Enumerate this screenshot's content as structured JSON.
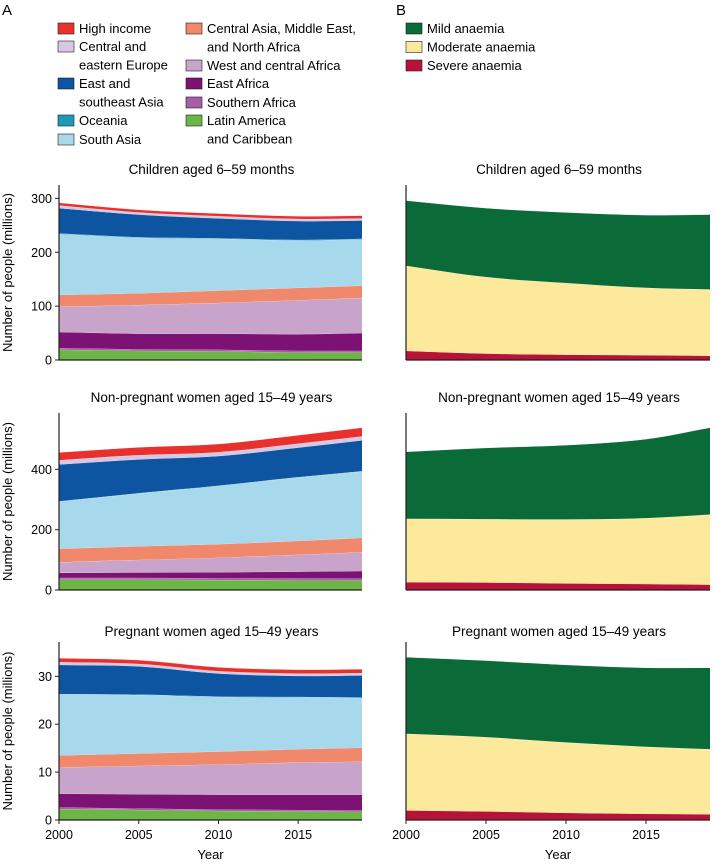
{
  "figure": {
    "panel_a_label": "A",
    "panel_b_label": "B"
  },
  "legend_a": [
    {
      "lines": [
        "High income"
      ],
      "color": "#e8312d"
    },
    {
      "lines": [
        "Central and",
        "eastern Europe"
      ],
      "color": "#d8c7e3"
    },
    {
      "lines": [
        "East and",
        "southeast Asia"
      ],
      "color": "#0d55a1"
    },
    {
      "lines": [
        "Oceania"
      ],
      "color": "#1d9bb6"
    },
    {
      "lines": [
        "South Asia"
      ],
      "color": "#a7d8ec"
    },
    {
      "lines": [
        "Central Asia, Middle East,",
        "and North Africa"
      ],
      "color": "#f0886b"
    },
    {
      "lines": [
        "West and central Africa"
      ],
      "color": "#c8a4cb"
    },
    {
      "lines": [
        "East Africa"
      ],
      "color": "#7c1374"
    },
    {
      "lines": [
        "Southern Africa"
      ],
      "color": "#a65ea6"
    },
    {
      "lines": [
        "Latin America",
        "and Caribbean"
      ],
      "color": "#6cb645"
    }
  ],
  "legend_b": [
    {
      "lines": [
        "Mild anaemia"
      ],
      "color": "#0a6b39"
    },
    {
      "lines": [
        "Moderate anaemia"
      ],
      "color": "#fde99c"
    },
    {
      "lines": [
        "Severe anaemia"
      ],
      "color": "#b81238"
    }
  ],
  "chart_data": [
    {
      "type": "area",
      "panel": "A",
      "title": "Children aged 6–59 months",
      "xlabel": "",
      "ylabel": "Number of people (millions)",
      "xlim": [
        2000,
        2019
      ],
      "ylim": [
        0,
        310
      ],
      "yticks": [
        0,
        100,
        200,
        300
      ],
      "xticks": [],
      "x": [
        2000,
        2005,
        2010,
        2015,
        2019
      ],
      "series": [
        {
          "name": "Latin America and Caribbean",
          "values": [
            19,
            17,
            16,
            14,
            14
          ]
        },
        {
          "name": "Southern Africa",
          "values": [
            3,
            3,
            3,
            3,
            3
          ]
        },
        {
          "name": "East Africa",
          "values": [
            30,
            29,
            30,
            31,
            33
          ]
        },
        {
          "name": "West and central Africa",
          "values": [
            47,
            53,
            57,
            63,
            65
          ]
        },
        {
          "name": "Central Asia, Middle East, and North Africa",
          "values": [
            22,
            22,
            23,
            23,
            23
          ]
        },
        {
          "name": "South Asia",
          "values": [
            113,
            103,
            96,
            88,
            86
          ]
        },
        {
          "name": "Oceania",
          "values": [
            1,
            1,
            1,
            1,
            1
          ]
        },
        {
          "name": "East and southeast Asia",
          "values": [
            47,
            42,
            37,
            35,
            34
          ]
        },
        {
          "name": "Central and eastern Europe",
          "values": [
            5,
            4,
            4,
            4,
            4
          ]
        },
        {
          "name": "High income",
          "values": [
            5,
            5,
            5,
            5,
            5
          ]
        }
      ]
    },
    {
      "type": "area",
      "panel": "B",
      "title": "Children aged 6–59 months",
      "xlabel": "",
      "ylabel": "",
      "xlim": [
        2000,
        2019
      ],
      "ylim": [
        0,
        310
      ],
      "yticks": [],
      "xticks": [],
      "x": [
        2000,
        2005,
        2010,
        2015,
        2019
      ],
      "series": [
        {
          "name": "Severe anaemia",
          "values": [
            17,
            12,
            10,
            9,
            8
          ]
        },
        {
          "name": "Moderate anaemia",
          "values": [
            158,
            142,
            133,
            125,
            123
          ]
        },
        {
          "name": "Mild anaemia",
          "values": [
            121,
            128,
            131,
            135,
            139
          ]
        }
      ]
    },
    {
      "type": "area",
      "panel": "A",
      "title": "Non-pregnant women aged 15–49 years",
      "xlabel": "",
      "ylabel": "Number of people (millions)",
      "xlim": [
        2000,
        2019
      ],
      "ylim": [
        0,
        560
      ],
      "yticks": [
        0,
        200,
        400
      ],
      "xticks": [],
      "x": [
        2000,
        2005,
        2010,
        2015,
        2019
      ],
      "series": [
        {
          "name": "Latin America and Caribbean",
          "values": [
            34,
            34,
            33,
            32,
            31
          ]
        },
        {
          "name": "Southern Africa",
          "values": [
            6,
            6,
            6,
            7,
            7
          ]
        },
        {
          "name": "East Africa",
          "values": [
            17,
            18,
            20,
            22,
            25
          ]
        },
        {
          "name": "West and central Africa",
          "values": [
            35,
            42,
            48,
            56,
            62
          ]
        },
        {
          "name": "Central Asia, Middle East, and North Africa",
          "values": [
            45,
            45,
            45,
            46,
            48
          ]
        },
        {
          "name": "South Asia",
          "values": [
            156,
            175,
            193,
            210,
            220
          ]
        },
        {
          "name": "Oceania",
          "values": [
            1,
            1,
            1,
            1,
            1
          ]
        },
        {
          "name": "East and southeast Asia",
          "values": [
            122,
            112,
            98,
            98,
            102
          ]
        },
        {
          "name": "Central and eastern Europe",
          "values": [
            14,
            14,
            13,
            13,
            13
          ]
        },
        {
          "name": "High income",
          "values": [
            26,
            26,
            27,
            28,
            29
          ]
        }
      ]
    },
    {
      "type": "area",
      "panel": "B",
      "title": "Non-pregnant women aged 15–49 years",
      "xlabel": "",
      "ylabel": "",
      "xlim": [
        2000,
        2019
      ],
      "ylim": [
        0,
        560
      ],
      "yticks": [],
      "xticks": [],
      "x": [
        2000,
        2005,
        2010,
        2015,
        2019
      ],
      "series": [
        {
          "name": "Severe anaemia",
          "values": [
            26,
            25,
            22,
            20,
            18
          ]
        },
        {
          "name": "Moderate anaemia",
          "values": [
            210,
            210,
            212,
            218,
            232
          ]
        },
        {
          "name": "Mild anaemia",
          "values": [
            222,
            236,
            246,
            262,
            288
          ]
        }
      ]
    },
    {
      "type": "area",
      "panel": "A",
      "title": "Pregnant women aged 15–49 years",
      "xlabel": "Year",
      "ylabel": "Number of people (millions)",
      "xlim": [
        2000,
        2019
      ],
      "ylim": [
        0,
        35.5
      ],
      "yticks": [
        0,
        10,
        20,
        30
      ],
      "xticks": [
        2000,
        2005,
        2010,
        2015
      ],
      "x": [
        2000,
        2005,
        2010,
        2015,
        2019
      ],
      "series": [
        {
          "name": "Latin America and Caribbean",
          "values": [
            2.3,
            2.1,
            1.9,
            1.8,
            1.7
          ]
        },
        {
          "name": "Southern Africa",
          "values": [
            0.3,
            0.3,
            0.3,
            0.3,
            0.3
          ]
        },
        {
          "name": "East Africa",
          "values": [
            2.9,
            3.0,
            3.1,
            3.2,
            3.3
          ]
        },
        {
          "name": "West and central Africa",
          "values": [
            5.5,
            5.9,
            6.3,
            6.7,
            6.9
          ]
        },
        {
          "name": "Central Asia, Middle East, and North Africa",
          "values": [
            2.5,
            2.6,
            2.7,
            2.8,
            2.9
          ]
        },
        {
          "name": "South Asia",
          "values": [
            12.7,
            12.2,
            11.4,
            10.8,
            10.4
          ]
        },
        {
          "name": "Oceania",
          "values": [
            0.1,
            0.1,
            0.1,
            0.1,
            0.1
          ]
        },
        {
          "name": "East and southeast Asia",
          "values": [
            6.1,
            5.9,
            4.8,
            4.4,
            4.6
          ]
        },
        {
          "name": "Central and eastern Europe",
          "values": [
            0.6,
            0.5,
            0.5,
            0.5,
            0.5
          ]
        },
        {
          "name": "High income",
          "values": [
            0.8,
            0.8,
            0.8,
            0.8,
            0.8
          ]
        }
      ]
    },
    {
      "type": "area",
      "panel": "B",
      "title": "Pregnant women aged 15–49 years",
      "xlabel": "Year",
      "ylabel": "",
      "xlim": [
        2000,
        2019
      ],
      "ylim": [
        0,
        35.5
      ],
      "yticks": [],
      "xticks": [
        2000,
        2005,
        2010,
        2015
      ],
      "x": [
        2000,
        2005,
        2010,
        2015,
        2019
      ],
      "series": [
        {
          "name": "Severe anaemia",
          "values": [
            2.0,
            1.8,
            1.5,
            1.3,
            1.2
          ]
        },
        {
          "name": "Moderate anaemia",
          "values": [
            16.0,
            15.5,
            14.7,
            14.0,
            13.6
          ]
        },
        {
          "name": "Mild anaemia",
          "values": [
            16.0,
            16.0,
            16.2,
            16.5,
            17.0
          ]
        }
      ]
    }
  ]
}
